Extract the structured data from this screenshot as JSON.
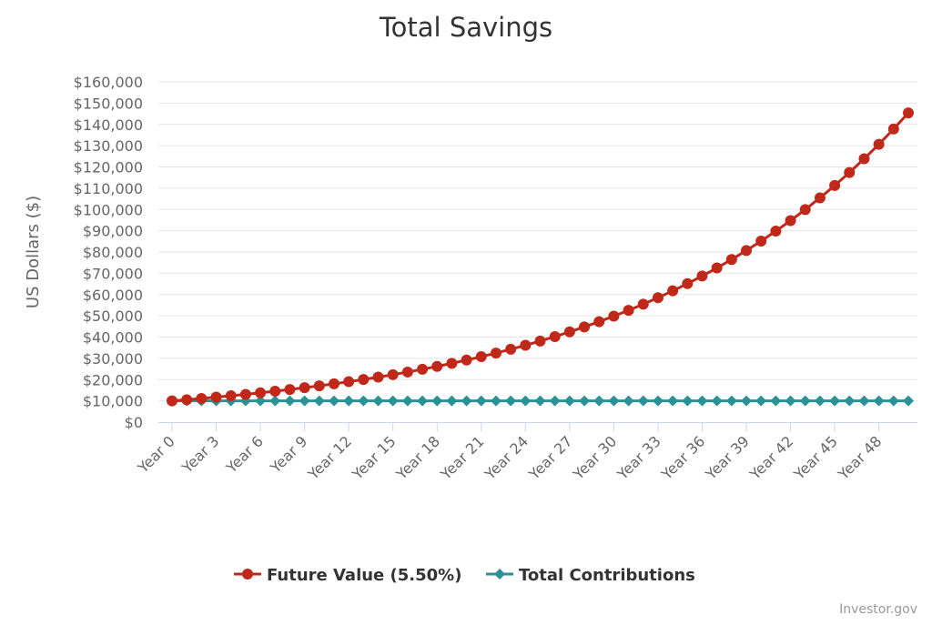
{
  "chart_data": {
    "type": "line",
    "title": "Total Savings",
    "ylabel": "US Dollars ($)",
    "xlabel": "",
    "ylim": [
      0,
      160000
    ],
    "y_ticks": [
      "$0",
      "$10,000",
      "$20,000",
      "$30,000",
      "$40,000",
      "$50,000",
      "$60,000",
      "$70,000",
      "$80,000",
      "$90,000",
      "$100,000",
      "$110,000",
      "$120,000",
      "$130,000",
      "$140,000",
      "$150,000",
      "$160,000"
    ],
    "x_tick_labels": [
      "Year 0",
      "Year 3",
      "Year 6",
      "Year 9",
      "Year 12",
      "Year 15",
      "Year 18",
      "Year 21",
      "Year 24",
      "Year 27",
      "Year 30",
      "Year 33",
      "Year 36",
      "Year 39",
      "Year 42",
      "Year 45",
      "Year 48"
    ],
    "x": [
      0,
      1,
      2,
      3,
      4,
      5,
      6,
      7,
      8,
      9,
      10,
      11,
      12,
      13,
      14,
      15,
      16,
      17,
      18,
      19,
      20,
      21,
      22,
      23,
      24,
      25,
      26,
      27,
      28,
      29,
      30,
      31,
      32,
      33,
      34,
      35,
      36,
      37,
      38,
      39,
      40,
      41,
      42,
      43,
      44,
      45,
      46,
      47,
      48,
      49,
      50
    ],
    "grid": true,
    "legend_position": "bottom-center",
    "series": [
      {
        "name": "Future Value (5.50%)",
        "color": "#c0281a",
        "marker": "circle",
        "values": [
          10000,
          10550,
          11130,
          11742,
          12388,
          13070,
          13788,
          14547,
          15347,
          16191,
          17081,
          18021,
          19012,
          20058,
          21161,
          22325,
          23553,
          24848,
          26215,
          27656,
          29178,
          30782,
          32475,
          34262,
          36146,
          38134,
          40231,
          42444,
          44778,
          47241,
          49840,
          52581,
          55473,
          58524,
          61742,
          65138,
          68721,
          72500,
          76488,
          80695,
          85133,
          89815,
          94755,
          99967,
          105465,
          111265,
          117385,
          123841,
          130652,
          137838,
          145420
        ]
      },
      {
        "name": "Total Contributions",
        "color": "#2a9196",
        "marker": "diamond",
        "values": [
          10000,
          10000,
          10000,
          10000,
          10000,
          10000,
          10000,
          10000,
          10000,
          10000,
          10000,
          10000,
          10000,
          10000,
          10000,
          10000,
          10000,
          10000,
          10000,
          10000,
          10000,
          10000,
          10000,
          10000,
          10000,
          10000,
          10000,
          10000,
          10000,
          10000,
          10000,
          10000,
          10000,
          10000,
          10000,
          10000,
          10000,
          10000,
          10000,
          10000,
          10000,
          10000,
          10000,
          10000,
          10000,
          10000,
          10000,
          10000,
          10000,
          10000,
          10000
        ]
      }
    ]
  },
  "credits": "Investor.gov"
}
